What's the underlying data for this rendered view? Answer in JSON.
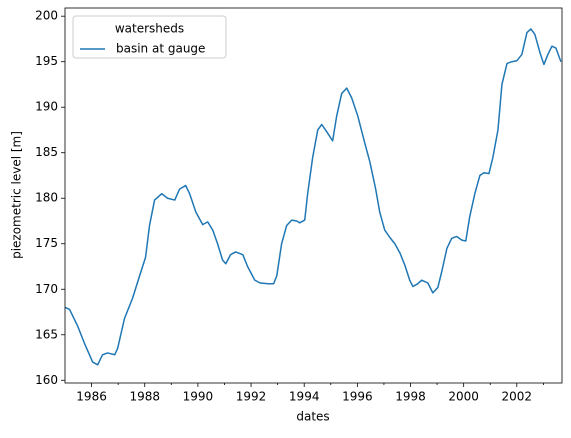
{
  "chart_data": {
    "type": "line",
    "x_label": "dates",
    "y_label": "piezometric level [m]",
    "legend_title": "watersheds",
    "legend": "upper left",
    "xlim": [
      1985.0,
      2003.7
    ],
    "ylim": [
      159.7,
      200.9
    ],
    "xticks": [
      1986,
      1988,
      1990,
      1992,
      1994,
      1996,
      1998,
      2000,
      2002
    ],
    "xminorticks": [
      1987,
      1989,
      1991,
      1993,
      1995,
      1997,
      1999,
      2001,
      2003
    ],
    "yticks": [
      160,
      165,
      170,
      175,
      180,
      185,
      190,
      195,
      200
    ],
    "x": [
      1985.0,
      1985.17,
      1985.47,
      1985.74,
      1986.04,
      1986.23,
      1986.41,
      1986.6,
      1986.87,
      1986.98,
      1987.24,
      1987.54,
      1987.81,
      1988.03,
      1988.18,
      1988.37,
      1988.64,
      1988.86,
      1989.13,
      1989.31,
      1989.54,
      1989.69,
      1989.92,
      1990.18,
      1990.37,
      1990.56,
      1990.74,
      1990.93,
      1991.05,
      1991.23,
      1991.42,
      1991.69,
      1991.87,
      1992.14,
      1992.33,
      1992.63,
      1992.85,
      1992.97,
      1993.15,
      1993.34,
      1993.53,
      1993.72,
      1993.83,
      1994.02,
      1994.13,
      1994.32,
      1994.51,
      1994.66,
      1994.85,
      1995.07,
      1995.22,
      1995.41,
      1995.6,
      1995.79,
      1996.02,
      1996.24,
      1996.47,
      1996.69,
      1996.84,
      1997.03,
      1997.22,
      1997.41,
      1997.6,
      1997.78,
      1997.97,
      1998.09,
      1998.27,
      1998.42,
      1998.65,
      1998.84,
      1999.03,
      1999.18,
      1999.37,
      1999.55,
      1999.74,
      1999.93,
      2000.08,
      2000.23,
      2000.42,
      2000.61,
      2000.76,
      2000.95,
      2001.1,
      2001.29,
      2001.44,
      2001.63,
      2001.81,
      2002.0,
      2002.19,
      2002.38,
      2002.53,
      2002.68,
      2002.87,
      2003.02,
      2003.17,
      2003.32,
      2003.47,
      2003.66
    ],
    "series": [
      {
        "name": "basin at gauge",
        "color": "#1f77b4",
        "values": [
          168,
          167.8,
          166,
          164,
          162,
          161.7,
          162.8,
          163,
          162.8,
          163.5,
          166.8,
          169,
          171.5,
          173.5,
          177,
          179.8,
          180.5,
          180,
          179.8,
          181,
          181.4,
          180.5,
          178.5,
          177.1,
          177.4,
          176.5,
          175,
          173.2,
          172.8,
          173.8,
          174.1,
          173.8,
          172.5,
          171,
          170.7,
          170.6,
          170.6,
          171.5,
          175,
          177,
          177.6,
          177.5,
          177.3,
          177.6,
          180.5,
          184.5,
          187.5,
          188.1,
          187.3,
          186.3,
          189,
          191.5,
          192.1,
          191,
          189,
          186.5,
          184,
          181,
          178.5,
          176.5,
          175.7,
          175,
          174,
          172.7,
          171,
          170.3,
          170.6,
          171,
          170.7,
          169.6,
          170.2,
          172,
          174.5,
          175.6,
          175.8,
          175.4,
          175.3,
          178,
          180.5,
          182.5,
          182.8,
          182.7,
          184.5,
          187.5,
          192.5,
          194.8,
          195,
          195.1,
          195.8,
          198.2,
          198.6,
          198,
          196,
          194.7,
          195.8,
          196.7,
          196.5,
          195
        ]
      }
    ]
  }
}
